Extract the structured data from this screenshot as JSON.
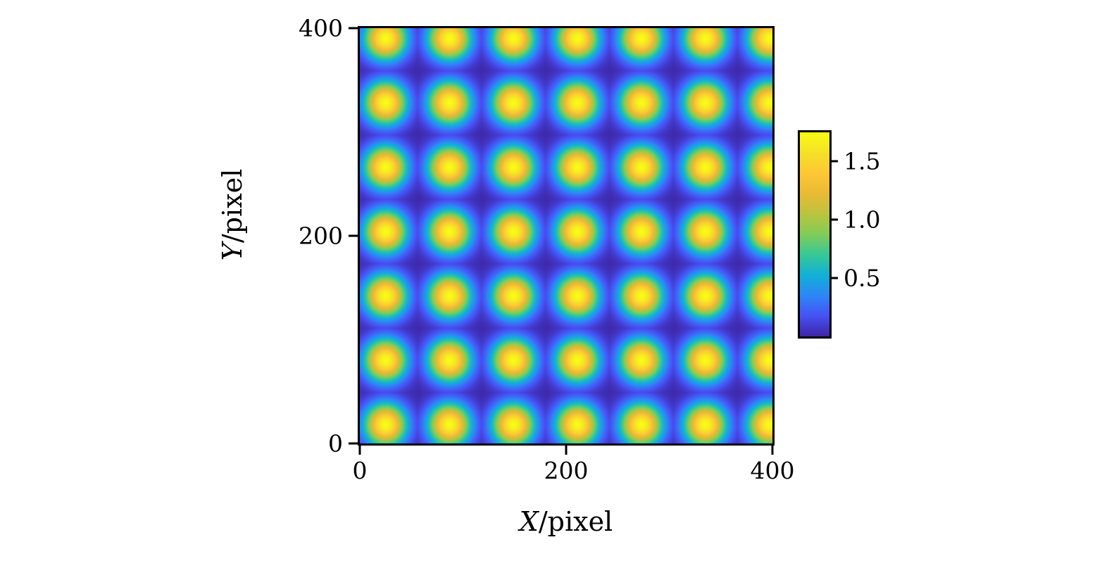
{
  "figure": {
    "background_color": "#ffffff",
    "axis_color": "#000000",
    "title": ""
  },
  "chart_data": {
    "type": "heatmap",
    "xlabel_variable": "X",
    "xlabel_unit": "/pixel",
    "ylabel_variable": "Y",
    "ylabel_unit": "/pixel",
    "xlim": [
      0,
      400
    ],
    "ylim": [
      0,
      400
    ],
    "grid": false,
    "x_ticks": {
      "values": [
        0,
        200,
        400
      ],
      "labels": [
        "0",
        "200",
        "400"
      ]
    },
    "y_ticks": {
      "values": [
        0,
        200,
        400
      ],
      "labels": [
        "0",
        "200",
        "400"
      ]
    },
    "colorbar": {
      "position": "right",
      "vmin": 0.0,
      "vmax": 1.75,
      "ticks": {
        "values": [
          0.5,
          1.0,
          1.5
        ],
        "labels": [
          "0.5",
          "1.0",
          "1.5"
        ]
      }
    },
    "colormap": {
      "name": "parula-like",
      "stops": [
        {
          "t": 0.0,
          "color": "#3e26a8"
        },
        {
          "t": 0.1,
          "color": "#4752f4"
        },
        {
          "t": 0.2,
          "color": "#2e87f7"
        },
        {
          "t": 0.3,
          "color": "#12b1d6"
        },
        {
          "t": 0.4,
          "color": "#37c897"
        },
        {
          "t": 0.5,
          "color": "#81cc59"
        },
        {
          "t": 0.6,
          "color": "#bbc43e"
        },
        {
          "t": 0.7,
          "color": "#eaba35"
        },
        {
          "t": 0.8,
          "color": "#fec735"
        },
        {
          "t": 0.9,
          "color": "#f5e128"
        },
        {
          "t": 1.0,
          "color": "#f9fb15"
        }
      ]
    },
    "pattern": {
      "description": "square lattice of gaussian bright spots on a dark background",
      "lattice_x0": 25,
      "lattice_y0": 18,
      "period": 62,
      "sigma": 14,
      "peak_value": 1.75,
      "background_value": 0.0,
      "columns_visible": 7,
      "rows_visible": 7
    }
  }
}
